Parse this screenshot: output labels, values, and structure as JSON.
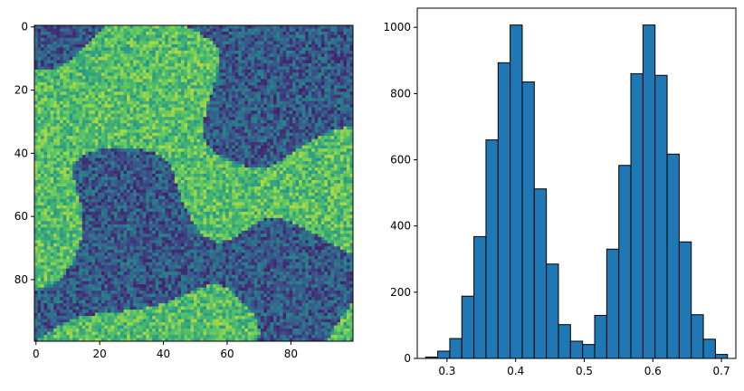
{
  "chart_data": [
    {
      "type": "heatmap",
      "colormap": "viridis",
      "rows": 100,
      "cols": 100,
      "description_levels": [
        0.4,
        0.6
      ],
      "xlim": [
        -0.5,
        99.5
      ],
      "ylim": [
        99.5,
        -0.5
      ],
      "xticks": [
        0,
        20,
        40,
        60,
        80
      ],
      "yticks": [
        0,
        20,
        40,
        60,
        80
      ],
      "xtick_labels": [
        "0",
        "20",
        "40",
        "60",
        "80"
      ],
      "ytick_labels": [
        "0",
        "20",
        "40",
        "60",
        "80"
      ],
      "title": "",
      "xlabel": "",
      "ylabel": "",
      "grid": false
    },
    {
      "type": "bar",
      "subtype": "histogram",
      "bin_edges": [
        0.2688,
        0.2864,
        0.304,
        0.3216,
        0.3392,
        0.3568,
        0.3744,
        0.392,
        0.4096,
        0.4272,
        0.4448,
        0.4624,
        0.48,
        0.4976,
        0.5152,
        0.5328,
        0.5504,
        0.568,
        0.5856,
        0.6032,
        0.6208,
        0.6384,
        0.656,
        0.6736,
        0.6912,
        0.7088
      ],
      "values": [
        4,
        22,
        60,
        188,
        368,
        660,
        893,
        1007,
        835,
        512,
        285,
        102,
        52,
        42,
        130,
        330,
        583,
        860,
        1007,
        855,
        617,
        352,
        132,
        58,
        12
      ],
      "bar_color": "#1f77b4",
      "edge_color": "#000000",
      "xlim": [
        0.2566,
        0.721
      ],
      "ylim": [
        0,
        1058
      ],
      "xticks": [
        0.3,
        0.4,
        0.5,
        0.6,
        0.7
      ],
      "yticks": [
        0,
        200,
        400,
        600,
        800,
        1000
      ],
      "xtick_labels": [
        "0.3",
        "0.4",
        "0.5",
        "0.6",
        "0.7"
      ],
      "ytick_labels": [
        "0",
        "200",
        "400",
        "600",
        "800",
        "1000"
      ],
      "title": "",
      "xlabel": "",
      "ylabel": "",
      "grid": false
    }
  ]
}
